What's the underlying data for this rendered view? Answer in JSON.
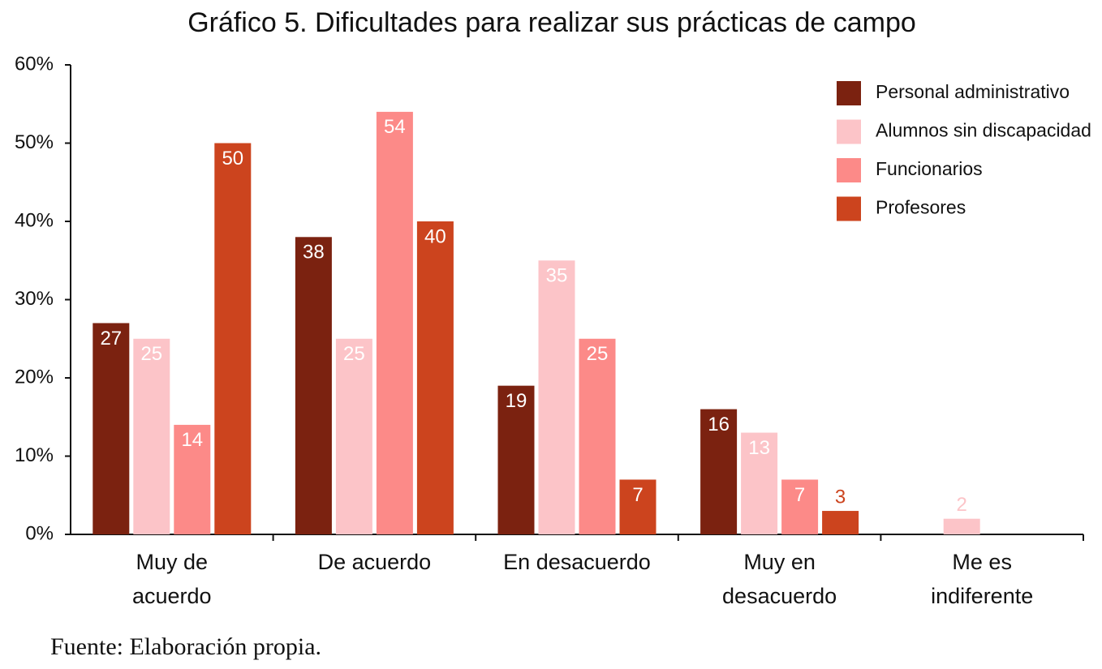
{
  "chart_data": {
    "type": "bar",
    "title": "Gráfico 5. Dificultades para realizar sus prácticas de campo",
    "categories": [
      "Muy de\nacuerdo",
      "De acuerdo",
      "En desacuerdo",
      "Muy en\ndesacuerdo",
      "Me es\nindiferente"
    ],
    "series": [
      {
        "name": "Personal administrativo",
        "color": "#7b2210",
        "values": [
          27,
          38,
          19,
          16,
          null
        ]
      },
      {
        "name": "Alumnos sin discapacidad",
        "color": "#fcc4c8",
        "values": [
          25,
          25,
          35,
          13,
          2
        ]
      },
      {
        "name": "Funcionarios",
        "color": "#fc8a88",
        "values": [
          14,
          54,
          25,
          7,
          null
        ]
      },
      {
        "name": "Profesores",
        "color": "#cc441e",
        "values": [
          50,
          40,
          7,
          3,
          null
        ]
      }
    ],
    "ylim": [
      0,
      60
    ],
    "yticks": [
      {
        "value": 0,
        "label": "0%"
      },
      {
        "value": 10,
        "label": "10%"
      },
      {
        "value": 20,
        "label": "20%"
      },
      {
        "value": 30,
        "label": "30%"
      },
      {
        "value": 40,
        "label": "40%"
      },
      {
        "value": 50,
        "label": "50%"
      },
      {
        "value": 60,
        "label": "60%"
      }
    ],
    "legend": "top-right",
    "source": "Fuente: Elaboración propia."
  }
}
